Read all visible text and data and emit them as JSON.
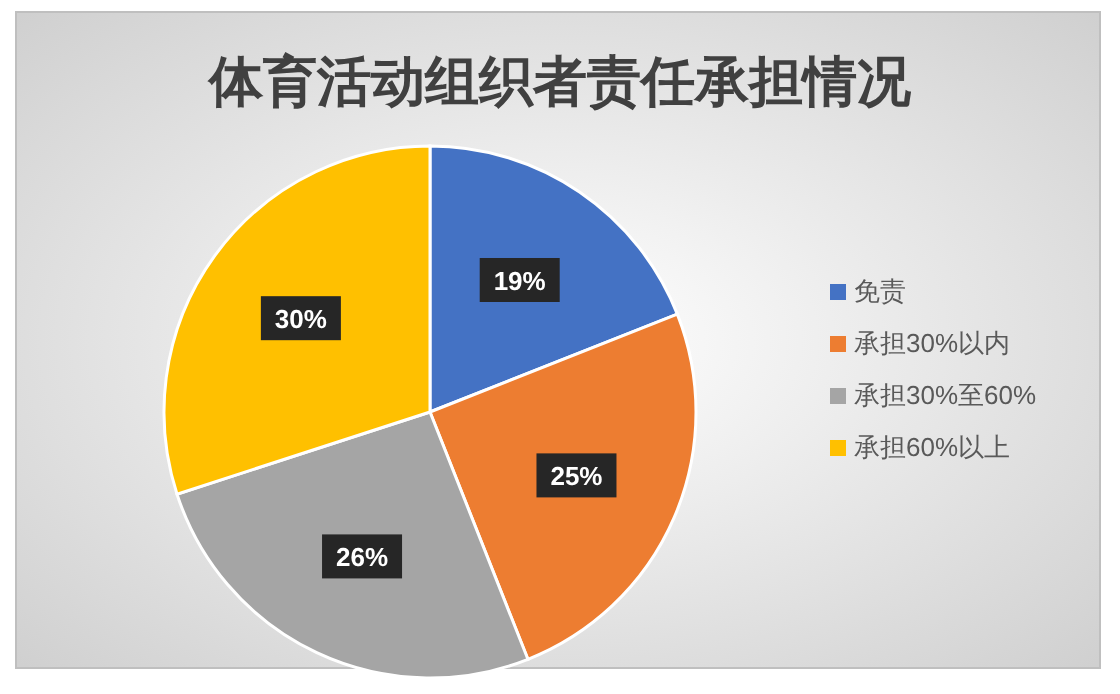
{
  "chart_data": {
    "type": "pie",
    "title": "体育活动组织者责任承担情况",
    "categories": [
      "免责",
      "承担30%以内",
      "承担30%至60%",
      "承担60%以上"
    ],
    "values": [
      19,
      25,
      26,
      30
    ],
    "colors": [
      "#4472c4",
      "#ed7d31",
      "#a5a5a5",
      "#ffc000"
    ],
    "value_labels": [
      "19%",
      "25%",
      "26%",
      "30%"
    ],
    "legend": "right"
  }
}
